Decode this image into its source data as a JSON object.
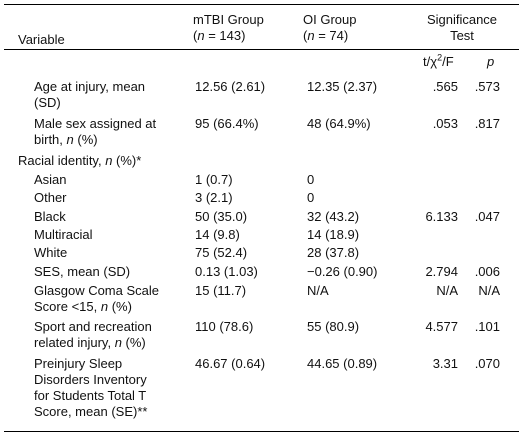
{
  "header": {
    "variable": "Variable",
    "mtbi_line1": "mTBI Group",
    "mtbi_n": "143",
    "oi_line1": "OI Group",
    "oi_n": "74",
    "sig_line1": "Significance",
    "sig_line2": "Test",
    "n_prefix": "(",
    "n_letter": "n",
    "n_eq": " = ",
    "n_suffix": ")",
    "stat_t": "t/χ",
    "stat_sup": "2",
    "stat_f": "/F",
    "stat_p": "p"
  },
  "rows": [
    {
      "label1": "Age at injury, mean",
      "label2": "(SD)",
      "mtbi": "12.56 (2.61)",
      "oi": "12.35 (2.37)",
      "stat": ".565",
      "p": ".573"
    },
    {
      "label1": "Male sex assigned at",
      "label2": "birth, ",
      "label2_i": "n",
      "label2_end": " (%)",
      "mtbi": "95 (66.4%)",
      "oi": "48 (64.9%)",
      "stat": ".053",
      "p": ".817"
    },
    {
      "label1": "Racial identity, ",
      "label1_i": "n",
      "label1_end": " (%)*"
    },
    {
      "label1": "Asian",
      "mtbi": "1 (0.7)",
      "oi": "0"
    },
    {
      "label1": "Other",
      "mtbi": "3 (2.1)",
      "oi": "0"
    },
    {
      "label1": "Black",
      "mtbi": "50 (35.0)",
      "oi": "32 (43.2)",
      "stat": "6.133",
      "p": ".047"
    },
    {
      "label1": "Multiracial",
      "mtbi": "14 (9.8)",
      "oi": "14 (18.9)"
    },
    {
      "label1": "White",
      "mtbi": "75 (52.4)",
      "oi": "28 (37.8)"
    },
    {
      "label1": "SES, mean (SD)",
      "mtbi": "0.13 (1.03)",
      "oi": "−0.26 (0.90)",
      "stat": "2.794",
      "p": ".006"
    },
    {
      "label1": "Glasgow Coma Scale",
      "label2": "Score <15, ",
      "label2_i": "n",
      "label2_end": " (%)",
      "mtbi": "15 (11.7)",
      "oi": "N/A",
      "stat": "N/A",
      "p": "N/A"
    },
    {
      "label1": "Sport and recreation",
      "label2": "related injury, ",
      "label2_i": "n",
      "label2_end": " (%)",
      "mtbi": "110 (78.6)",
      "oi": "55 (80.9)",
      "stat": "4.577",
      "p": ".101"
    },
    {
      "label1": "Preinjury Sleep",
      "label2": "Disorders Inventory",
      "label3": "for Students Total T",
      "label4": "Score, mean (SE)**",
      "mtbi": "46.67 (0.64)",
      "oi": "44.65 (0.89)",
      "stat": "3.31",
      "p": ".070"
    }
  ]
}
